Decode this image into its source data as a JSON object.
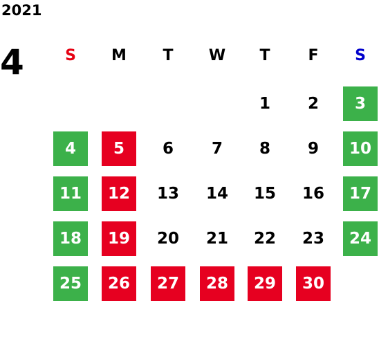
{
  "year": "2021",
  "month": "4",
  "weekdays": [
    {
      "label": "S",
      "color": "#e60012"
    },
    {
      "label": "M",
      "color": "#000000"
    },
    {
      "label": "T",
      "color": "#000000"
    },
    {
      "label": "W",
      "color": "#000000"
    },
    {
      "label": "T",
      "color": "#000000"
    },
    {
      "label": "F",
      "color": "#000000"
    },
    {
      "label": "S",
      "color": "#0000cc"
    }
  ],
  "weeks": [
    [
      null,
      null,
      null,
      null,
      {
        "day": 1
      },
      {
        "day": 2
      },
      {
        "day": 3,
        "fill": "#3cb14a"
      }
    ],
    [
      {
        "day": 4,
        "fill": "#3cb14a"
      },
      {
        "day": 5,
        "fill": "#e60020"
      },
      {
        "day": 6
      },
      {
        "day": 7
      },
      {
        "day": 8
      },
      {
        "day": 9
      },
      {
        "day": 10,
        "fill": "#3cb14a"
      }
    ],
    [
      {
        "day": 11,
        "fill": "#3cb14a"
      },
      {
        "day": 12,
        "fill": "#e60020"
      },
      {
        "day": 13
      },
      {
        "day": 14
      },
      {
        "day": 15
      },
      {
        "day": 16
      },
      {
        "day": 17,
        "fill": "#3cb14a"
      }
    ],
    [
      {
        "day": 18,
        "fill": "#3cb14a"
      },
      {
        "day": 19,
        "fill": "#e60020"
      },
      {
        "day": 20
      },
      {
        "day": 21
      },
      {
        "day": 22
      },
      {
        "day": 23
      },
      {
        "day": 24,
        "fill": "#3cb14a"
      }
    ],
    [
      {
        "day": 25,
        "fill": "#3cb14a"
      },
      {
        "day": 26,
        "fill": "#e60020"
      },
      {
        "day": 27,
        "fill": "#e60020"
      },
      {
        "day": 28,
        "fill": "#e60020"
      },
      {
        "day": 29,
        "fill": "#e60020"
      },
      {
        "day": 30,
        "fill": "#e60020"
      },
      null
    ]
  ]
}
